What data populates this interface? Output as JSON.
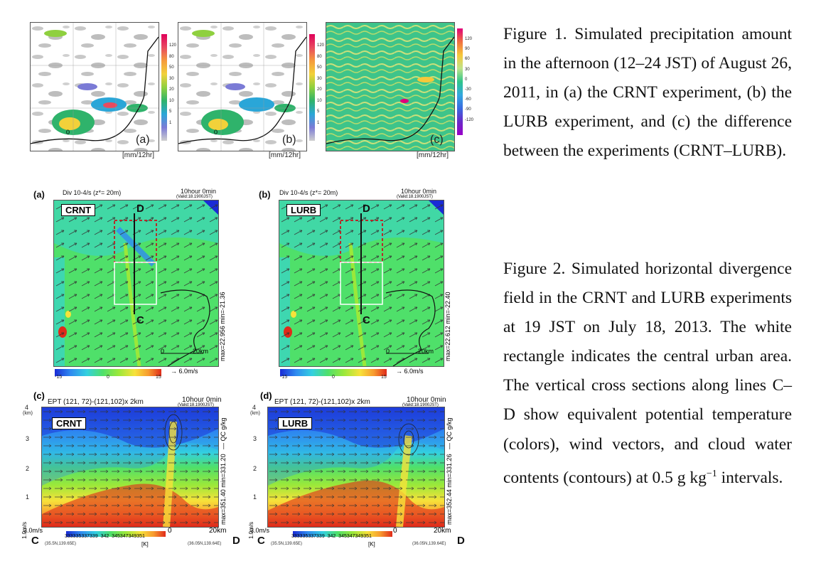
{
  "figure1": {
    "panels": [
      {
        "label": "(a)",
        "unit": "[mm/12hr]",
        "ticks": [
          "120",
          "80",
          "50",
          "30",
          "20",
          "10",
          "5",
          "1"
        ]
      },
      {
        "label": "(b)",
        "unit": "[mm/12hr]",
        "ticks": [
          "120",
          "80",
          "50",
          "30",
          "20",
          "10",
          "5",
          "1"
        ]
      },
      {
        "label": "(c)",
        "unit": "[mm/12hr]",
        "ticks": [
          "120",
          "90",
          "60",
          "30",
          "0",
          "-30",
          "-60",
          "-90",
          "-120"
        ]
      }
    ],
    "map_zero": "0"
  },
  "figure2_top": {
    "panels": [
      {
        "letter": "(a)",
        "header": "Div 10-4/s (z*= 20m)",
        "time": "10hour  0min",
        "valid": "(Valid:18.1900JST)",
        "name": "CRNT",
        "point_top": "D",
        "point_bottom": "C",
        "side": "max=22.956  min=-21.36",
        "scale_zero": "0",
        "scale_km": "20km",
        "cbar": [
          "-15",
          "0",
          "15"
        ],
        "vec": "6.0m/s"
      },
      {
        "letter": "(b)",
        "header": "Div 10-4/s (z*= 20m)",
        "time": "10hour  0min",
        "valid": "(Valid:18.1900JST)",
        "name": "LURB",
        "point_top": "D",
        "point_bottom": "C",
        "side": "max=22.612  min=-22.40",
        "scale_zero": "0",
        "scale_km": "20km",
        "cbar": [
          "-15",
          "0",
          "15"
        ],
        "vec": "6.0m/s"
      }
    ]
  },
  "figure2_bottom": {
    "panels": [
      {
        "letter": "(c)",
        "header": "EPT   (121, 72)-(121,102)x 2km",
        "time": "10hour  0min",
        "valid": "(Valid:18.1900JST)",
        "name": "CRNT",
        "side": "max=351.40  min=331.20",
        "qc": "— QC g/kg",
        "yticks": [
          "4",
          "3",
          "2",
          "1"
        ],
        "km": "(km)",
        "wvec": "1.0m/s",
        "hvec": "3.0m/s",
        "cbar_labels": "333335337339  342  345347349351",
        "kelvin": "[K]",
        "zero": "0",
        "km20": "20km",
        "left_pt": "C",
        "right_pt": "D",
        "left_coord": "(35.5N,139.65E)",
        "right_coord": "(36.05N,139.64E)"
      },
      {
        "letter": "(d)",
        "header": "EPT   (121, 72)-(121,102)x 2km",
        "time": "10hour  0min",
        "valid": "(Valid:18.1900JST)",
        "name": "LURB",
        "side": "max=352.44  min=331.26",
        "qc": "— QC g/kg",
        "yticks": [
          "4",
          "3",
          "2",
          "1"
        ],
        "km": "(km)",
        "wvec": "1.0m/s",
        "hvec": "3.0m/s",
        "cbar_labels": "333335337339  342  345347349351",
        "kelvin": "[K]",
        "zero": "0",
        "km20": "20km",
        "left_pt": "C",
        "right_pt": "D",
        "left_coord": "(35.5N,139.65E)",
        "right_coord": "(36.05N,139.64E)"
      }
    ]
  },
  "captions": {
    "fig1": "Figure 1. Simulated precipitation amount in the afternoon (12–24 JST) of August 26, 2011, in (a) the CRNT experiment, (b) the LURB experiment, and (c) the difference between the experiments (CRNT–LURB).",
    "fig2_pre": "Figure 2. Simulated horizontal divergence field in the CRNT and LURB experiments at 19 JST on July 18, 2013. The white rectangle indicates the central urban area. The vertical cross sections along lines C–D show equivalent potential temperature (colors), wind vectors, and cloud water contents (contours) at 0.5 g kg",
    "fig2_sup": "−1",
    "fig2_post": " intervals."
  },
  "colors": {
    "precip_scale": [
      "#e0005a",
      "#e84a5f",
      "#f59b3d",
      "#f2d13a",
      "#8fd03f",
      "#2fb36b",
      "#2aa6d8",
      "#7b7bd6",
      "#cfcfcf"
    ],
    "diff_scale": [
      "#e0007a",
      "#f07040",
      "#f7c83a",
      "#bfe38a",
      "#2fc58a",
      "#33a8e0",
      "#3a6ae0",
      "#6a2ac8",
      "#9a00c8"
    ],
    "div_scale": [
      "#1a2bd6",
      "#2f8bf0",
      "#33d0e0",
      "#4fe06a",
      "#9be83a",
      "#f7e23a",
      "#f79a2f",
      "#e02a1a"
    ],
    "ept_scale": [
      "#1a2bd6",
      "#2f8bf0",
      "#33d0e0",
      "#4fe06a",
      "#9be83a",
      "#f7e23a",
      "#f79a2f",
      "#e02a1a"
    ]
  }
}
